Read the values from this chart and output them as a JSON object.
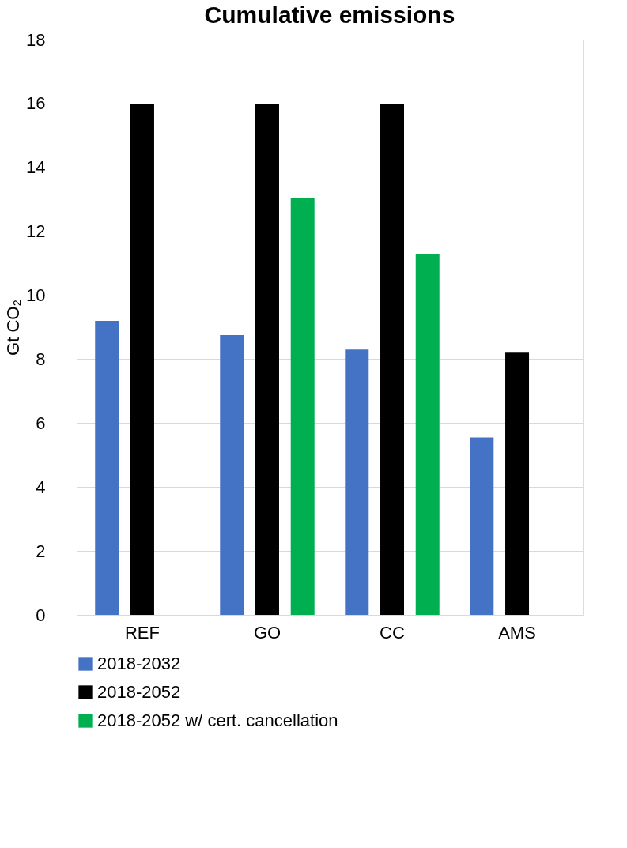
{
  "chart_data": {
    "type": "bar",
    "title": "Cumulative emissions",
    "ylabel": "Gt CO₂",
    "categories": [
      "REF",
      "GO",
      "CC",
      "AMS"
    ],
    "series": [
      {
        "name": "2018-2032",
        "color": "#4472c4",
        "values": [
          9.2,
          8.75,
          8.3,
          5.55
        ]
      },
      {
        "name": "2018-2052",
        "color": "#000000",
        "values": [
          16,
          16,
          16,
          8.2
        ]
      },
      {
        "name": "2018-2052 w/ cert. cancellation",
        "color": "#00b050",
        "values": [
          null,
          13.05,
          11.3,
          null
        ]
      }
    ],
    "ylim": [
      0,
      18
    ],
    "yticks": [
      0,
      2,
      4,
      6,
      8,
      10,
      12,
      14,
      16,
      18
    ],
    "grid": "y",
    "legend": "bottom"
  }
}
